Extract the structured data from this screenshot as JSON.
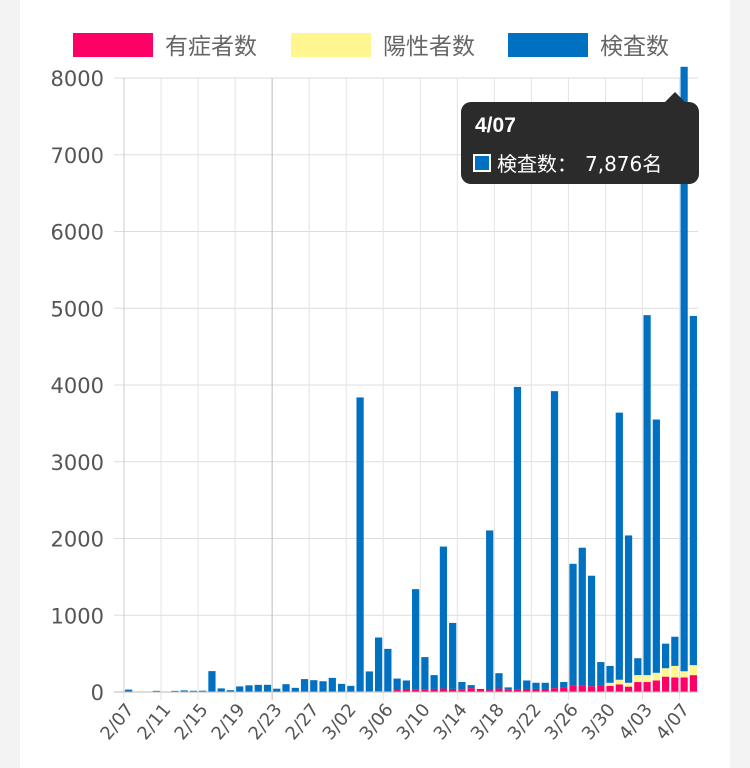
{
  "chart_data": {
    "type": "bar",
    "stacked": true,
    "legend_position": "top",
    "grid": true,
    "ylim": [
      0,
      8000
    ],
    "yticks": [
      0,
      1000,
      2000,
      3000,
      4000,
      5000,
      6000,
      7000,
      8000
    ],
    "categories": [
      "2/07",
      "2/08",
      "2/09",
      "2/10",
      "2/11",
      "2/12",
      "2/13",
      "2/14",
      "2/15",
      "2/16",
      "2/17",
      "2/18",
      "2/19",
      "2/20",
      "2/21",
      "2/22",
      "2/23",
      "2/24",
      "2/25",
      "2/26",
      "2/27",
      "2/28",
      "2/29",
      "3/01",
      "3/02",
      "3/03",
      "3/04",
      "3/05",
      "3/06",
      "3/07",
      "3/08",
      "3/09",
      "3/10",
      "3/11",
      "3/12",
      "3/13",
      "3/14",
      "3/15",
      "3/16",
      "3/17",
      "3/18",
      "3/19",
      "3/20",
      "3/21",
      "3/22",
      "3/23",
      "3/24",
      "3/25",
      "3/26",
      "3/27",
      "3/28",
      "3/29",
      "3/30",
      "3/31",
      "4/01",
      "4/02",
      "4/03",
      "4/04",
      "4/05",
      "4/06",
      "4/07",
      "4/08"
    ],
    "xtick_labels": [
      "2/07",
      "2/11",
      "2/15",
      "2/19",
      "2/23",
      "2/27",
      "3/02",
      "3/06",
      "3/10",
      "3/14",
      "3/18",
      "3/22",
      "3/26",
      "3/30",
      "4/03",
      "4/07"
    ],
    "series": [
      {
        "name": "有症者数",
        "color": "#ff0066",
        "values": [
          1,
          0,
          0,
          0,
          1,
          0,
          1,
          1,
          2,
          2,
          2,
          4,
          3,
          2,
          3,
          4,
          3,
          2,
          4,
          3,
          4,
          5,
          4,
          6,
          5,
          8,
          8,
          10,
          12,
          25,
          40,
          30,
          35,
          40,
          45,
          40,
          30,
          50,
          40,
          25,
          45,
          30,
          35,
          40,
          40,
          40,
          50,
          60,
          80,
          80,
          75,
          90,
          80,
          100,
          70,
          130,
          130,
          150,
          200,
          190,
          190,
          220
        ]
      },
      {
        "name": "陽性者数",
        "color": "#fff68f",
        "values": [
          0,
          0,
          0,
          0,
          0,
          0,
          0,
          0,
          0,
          0,
          0,
          0,
          0,
          0,
          0,
          0,
          0,
          0,
          0,
          0,
          0,
          0,
          0,
          0,
          0,
          0,
          0,
          0,
          0,
          0,
          0,
          0,
          0,
          0,
          0,
          0,
          0,
          0,
          0,
          0,
          0,
          0,
          0,
          0,
          0,
          0,
          0,
          0,
          0,
          0,
          0,
          0,
          40,
          60,
          50,
          90,
          90,
          100,
          110,
          150,
          80,
          130
        ]
      },
      {
        "name": "検査数",
        "color": "#0070c0",
        "values": [
          30,
          5,
          5,
          15,
          5,
          15,
          20,
          15,
          15,
          270,
          45,
          20,
          70,
          85,
          90,
          90,
          40,
          100,
          50,
          165,
          150,
          135,
          180,
          100,
          75,
          3830,
          260,
          700,
          550,
          150,
          110,
          1310,
          420,
          180,
          1850,
          860,
          100,
          40,
          0,
          2080,
          200,
          30,
          3940,
          110,
          80,
          80,
          3870,
          70,
          1590,
          1800,
          1440,
          300,
          220,
          3480,
          1920,
          220,
          4690,
          3300,
          320,
          380,
          7876,
          4550
        ]
      }
    ],
    "tooltip": {
      "title": "4/07",
      "label": "検査数：",
      "value": "7,876名"
    }
  }
}
